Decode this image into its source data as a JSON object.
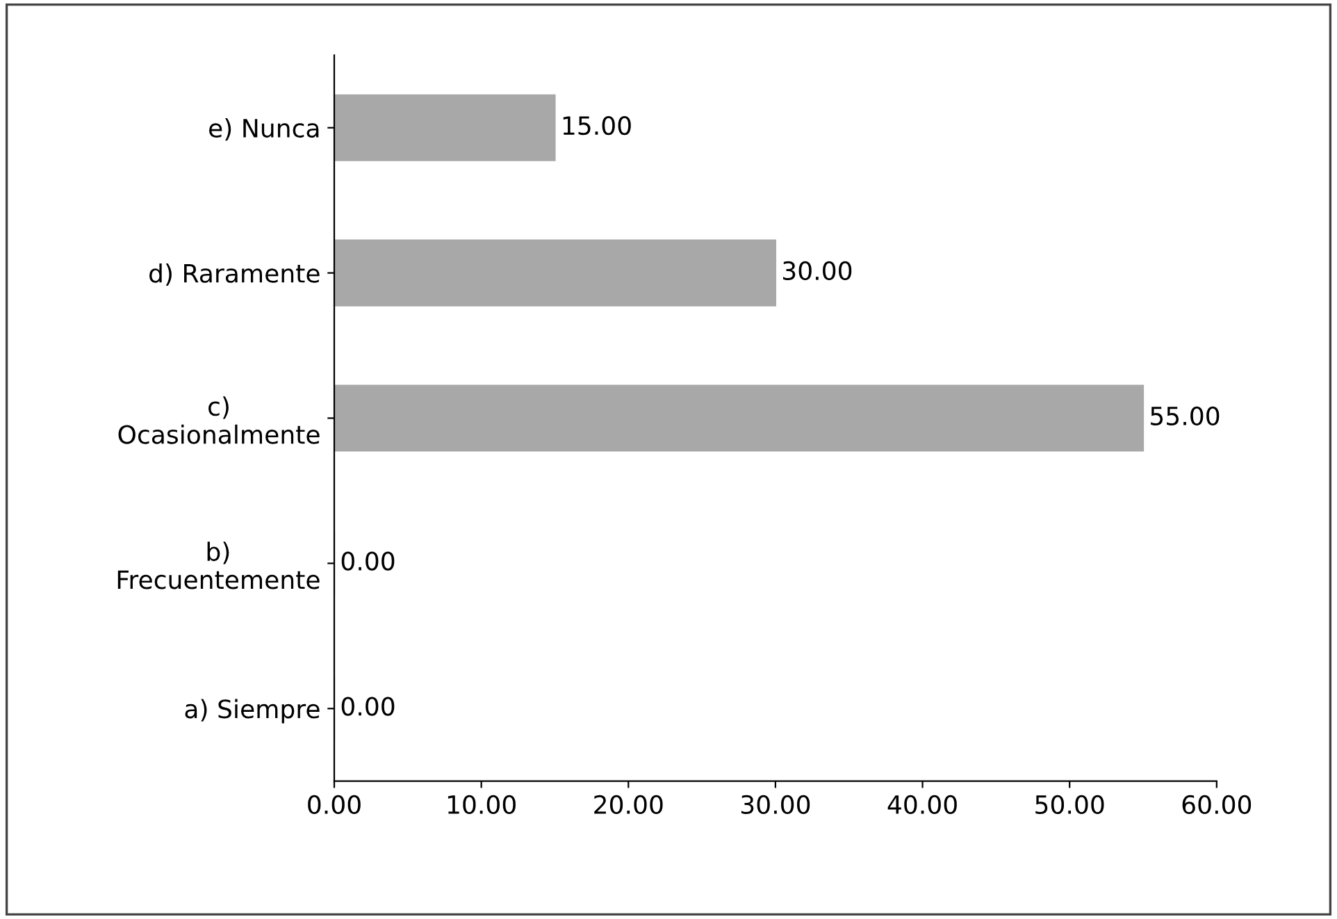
{
  "chart_data": {
    "type": "bar",
    "orientation": "horizontal",
    "categories": [
      "e) Nunca",
      "d) Raramente",
      "c)\nOcasionalmente",
      "b)\nFrecuentemente",
      "a) Siempre"
    ],
    "values": [
      15,
      30,
      55,
      0,
      0
    ],
    "value_labels": [
      "15.00",
      "30.00",
      "55.00",
      "0.00",
      "0.00"
    ],
    "color": "#a8a8a8",
    "xlim": [
      0,
      60
    ],
    "xticks": [
      {
        "value": 0,
        "label": "0.00"
      },
      {
        "value": 10,
        "label": "10.00"
      },
      {
        "value": 20,
        "label": "20.00"
      },
      {
        "value": 30,
        "label": "30.00"
      },
      {
        "value": 40,
        "label": "40.00"
      },
      {
        "value": 50,
        "label": "50.00"
      },
      {
        "value": 60,
        "label": "60.00"
      }
    ],
    "grid": false
  }
}
